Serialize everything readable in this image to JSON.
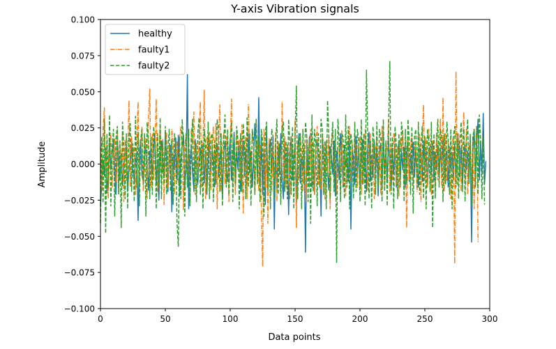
{
  "chart_data": {
    "type": "line",
    "title": "Y-axis Vibration signals",
    "xlabel": "Data points",
    "ylabel": "Amplitude",
    "xlim": [
      0,
      300
    ],
    "ylim": [
      -0.1,
      0.1
    ],
    "xticks": [
      0,
      50,
      100,
      150,
      200,
      250,
      300
    ],
    "yticks": [
      -0.1,
      -0.075,
      -0.05,
      -0.025,
      0.0,
      0.025,
      0.05,
      0.075,
      0.1
    ],
    "xtick_labels": [
      "0",
      "50",
      "100",
      "150",
      "200",
      "250",
      "300"
    ],
    "ytick_labels": [
      "−0.100",
      "−0.075",
      "−0.050",
      "−0.025",
      "0.000",
      "0.025",
      "0.050",
      "0.075",
      "0.100"
    ],
    "grid": false,
    "legend_position": "upper left",
    "series": [
      {
        "name": "healthy",
        "color": "#1f77b4",
        "linestyle": "solid",
        "x_start": 0,
        "x_step": 1,
        "values": [
          -0.029,
          -0.013,
          0.003,
          -0.008,
          0.011,
          -0.02,
          -0.007,
          0.016,
          -0.004,
          0.006,
          0.017,
          -0.006,
          -0.021,
          0.019,
          0.003,
          -0.011,
          0.007,
          -0.015,
          -0.001,
          0.009,
          0.012,
          -0.018,
          -0.003,
          0.004,
          0.015,
          -0.006,
          -0.011,
          0.003,
          0.008,
          -0.039,
          0.006,
          0.017,
          -0.008,
          -0.012,
          0.004,
          0.013,
          -0.002,
          -0.018,
          0.009,
          0.005,
          -0.007,
          0.012,
          0.021,
          -0.014,
          0.003,
          -0.025,
          0.009,
          0.016,
          -0.004,
          -0.008,
          0.022,
          0.004,
          -0.019,
          0.008,
          0.013,
          -0.033,
          0.007,
          -0.004,
          0.018,
          -0.011,
          0.02,
          -0.022,
          0.004,
          0.012,
          0.02,
          -0.016,
          -0.002,
          0.062,
          -0.031,
          0.005,
          0.013,
          -0.006,
          -0.018,
          0.017,
          0.007,
          -0.014,
          0.003,
          0.011,
          -0.005,
          0.014,
          -0.013,
          0.008,
          -0.021,
          0.004,
          0.016,
          -0.007,
          0.011,
          0.002,
          -0.016,
          0.009,
          0.014,
          -0.009,
          0.004,
          0.012,
          -0.023,
          0.008,
          0.015,
          -0.004,
          -0.012,
          0.006,
          0.018,
          -0.011,
          0.003,
          0.022,
          -0.015,
          0.009,
          -0.004,
          0.013,
          -0.019,
          0.006,
          0.016,
          -0.008,
          0.011,
          -0.014,
          0.021,
          -0.006,
          0.009,
          -0.016,
          0.004,
          0.028,
          0.012,
          -0.009,
          0.046,
          -0.013,
          0.018,
          -0.021,
          0.009,
          -0.028,
          0.024,
          -0.015,
          0.003,
          0.017,
          -0.006,
          0.019,
          -0.045,
          0.011,
          -0.018,
          0.014,
          -0.007,
          0.021,
          -0.012,
          -0.024,
          0.016,
          -0.009,
          0.013,
          -0.035,
          0.008,
          0.019,
          -0.011,
          0.004,
          0.015,
          -0.027,
          0.009,
          0.021,
          -0.013,
          0.006,
          -0.004,
          0.011,
          -0.061,
          0.014,
          -0.008,
          0.018,
          0.021,
          -0.016,
          0.007,
          -0.021,
          0.012,
          0.017,
          -0.009,
          0.004,
          -0.036,
          0.018,
          0.008,
          -0.012,
          0.015,
          -0.003,
          -0.018,
          0.012,
          0.006,
          -0.007,
          0.016,
          -0.022,
          0.009,
          0.004,
          -0.011,
          0.021,
          0.007,
          -0.016,
          0.013,
          -0.002,
          0.006,
          -0.012,
          0.018,
          -0.045,
          0.011,
          0.003,
          -0.014,
          0.019,
          -0.007,
          0.012,
          -0.016,
          0.004,
          0.017,
          -0.008,
          0.008,
          -0.019,
          0.012,
          0.022,
          -0.012,
          0.006,
          -0.009,
          0.016,
          -0.004,
          0.011,
          -0.022,
          0.008,
          0.014,
          -0.016,
          0.021,
          -0.006,
          0.009,
          -0.012,
          0.017,
          0.004,
          -0.018,
          0.011,
          -0.007,
          0.014,
          -0.016,
          0.006,
          0.016,
          -0.011,
          0.009,
          -0.004,
          0.012,
          -0.016,
          0.007,
          0.019,
          -0.012,
          0.008,
          -0.006,
          0.015,
          -0.009,
          0.011,
          -0.003,
          -0.016,
          0.012,
          0.007,
          -0.012,
          0.016,
          -0.006,
          0.009,
          -0.015,
          0.004,
          0.012,
          -0.007,
          0.016,
          -0.011,
          0.008,
          -0.004,
          0.013,
          -0.009,
          0.011,
          -0.006,
          0.017,
          -0.012,
          0.006,
          0.009,
          -0.016,
          0.012,
          -0.003,
          0.008,
          -0.011,
          0.014,
          -0.007,
          0.004,
          0.016,
          -0.009,
          0.011,
          -0.014,
          0.006,
          0.013,
          -0.004,
          0.009,
          -0.012,
          0.018,
          -0.054,
          0.007,
          0.024,
          -0.009,
          0.014,
          0.031,
          -0.011,
          0.016,
          -0.006,
          0.035,
          -0.014,
          0.002
        ]
      },
      {
        "name": "faulty1",
        "color": "#ff7f0e",
        "linestyle": "dashdot",
        "x_start": 0,
        "x_step": 1,
        "values": [
          0.012,
          -0.018,
          0.024,
          0.039,
          -0.011,
          0.016,
          -0.024,
          0.009,
          0.021,
          -0.016,
          0.006,
          0.018,
          -0.012,
          0.024,
          -0.019,
          0.014,
          -0.006,
          0.022,
          -0.026,
          0.017,
          -0.011,
          0.009,
          0.044,
          -0.016,
          0.019,
          0.007,
          0.012,
          -0.021,
          0.015,
          0.043,
          -0.014,
          0.011,
          0.026,
          -0.019,
          0.009,
          0.018,
          -0.024,
          0.031,
          0.052,
          -0.016,
          0.021,
          -0.011,
          0.014,
          0.045,
          -0.019,
          0.006,
          0.026,
          -0.012,
          0.017,
          -0.028,
          0.011,
          0.022,
          -0.016,
          0.013,
          -0.009,
          0.024,
          0.014,
          -0.021,
          0.008,
          0.016,
          -0.014,
          0.018,
          0.026,
          0.009,
          -0.032,
          0.013,
          0.021,
          -0.011,
          0.016,
          -0.028,
          0.024,
          0.011,
          0.036,
          -0.021,
          0.014,
          -0.009,
          0.018,
          0.043,
          -0.016,
          0.012,
          0.051,
          -0.024,
          0.019,
          0.009,
          0.022,
          -0.018,
          0.014,
          0.026,
          -0.011,
          0.028,
          -0.031,
          0.016,
          0.041,
          -0.019,
          0.011,
          0.022,
          -0.014,
          0.019,
          0.009,
          -0.026,
          0.016,
          0.045,
          -0.016,
          0.012,
          -0.021,
          0.023,
          0.009,
          0.017,
          -0.012,
          0.027,
          -0.034,
          0.013,
          0.019,
          -0.024,
          0.041,
          0.009,
          -0.016,
          0.022,
          0.014,
          -0.021,
          0.011,
          0.016,
          -0.019,
          0.013,
          -0.031,
          -0.071,
          0.024,
          -0.016,
          0.013,
          -0.041,
          0.018,
          0.009,
          -0.019,
          0.014,
          -0.012,
          0.022,
          -0.026,
          0.016,
          0.009,
          -0.021,
          0.043,
          -0.011,
          0.019,
          -0.016,
          0.014,
          0.009,
          -0.024,
          0.019,
          0.012,
          -0.016,
          0.031,
          -0.044,
          0.014,
          -0.011,
          0.021,
          0.009,
          -0.019,
          0.014,
          -0.026,
          0.018,
          0.011,
          -0.016,
          0.024,
          -0.012,
          0.016,
          -0.021,
          0.013,
          0.026,
          -0.014,
          0.009,
          -0.018,
          0.021,
          0.012,
          -0.024,
          0.016,
          -0.009,
          0.019,
          -0.031,
          0.014,
          0.022,
          -0.012,
          0.017,
          -0.021,
          0.011,
          0.013,
          -0.018,
          0.023,
          -0.014,
          0.009,
          -0.022,
          0.016,
          0.012,
          0.026,
          -0.011,
          0.014,
          -0.019,
          0.021,
          0.009,
          -0.016,
          0.013,
          0.019,
          -0.021,
          0.011,
          -0.014,
          0.024,
          0.008,
          -0.018,
          0.013,
          0.021,
          -0.011,
          0.016,
          -0.024,
          0.009,
          0.019,
          -0.014,
          0.012,
          -0.021,
          0.026,
          0.011,
          -0.016,
          0.014,
          0.009,
          0.031,
          -0.019,
          0.013,
          -0.011,
          0.021,
          0.016,
          -0.014,
          0.012,
          -0.022,
          0.018,
          0.009,
          0.024,
          -0.016,
          0.014,
          -0.044,
          0.019,
          -0.011,
          0.013,
          0.021,
          -0.014,
          0.009,
          0.016,
          -0.019,
          0.012,
          0.021,
          -0.026,
          0.014,
          0.041,
          -0.011,
          0.018,
          -0.016,
          0.024,
          0.009,
          -0.021,
          0.016,
          0.012,
          -0.018,
          0.022,
          -0.011,
          0.014,
          0.031,
          -0.016,
          0.046,
          -0.019,
          0.021,
          -0.012,
          0.016,
          0.009,
          -0.024,
          0.014,
          0.019,
          -0.069,
          0.064,
          -0.014,
          0.021,
          0.011,
          -0.019,
          0.016,
          0.036,
          -0.012,
          0.024,
          -0.021,
          0.014,
          0.009,
          -0.016,
          0.019,
          -0.031,
          0.013,
          0.026,
          -0.054
        ]
      },
      {
        "name": "faulty2",
        "color": "#2ca02c",
        "linestyle": "dashed",
        "x_start": 0,
        "x_step": 1,
        "values": [
          -0.041,
          0.019,
          -0.027,
          0.031,
          -0.048,
          0.021,
          -0.016,
          0.034,
          -0.029,
          0.011,
          0.024,
          -0.036,
          0.018,
          0.026,
          -0.021,
          0.016,
          -0.044,
          0.029,
          0.012,
          -0.024,
          0.021,
          -0.031,
          0.019,
          0.028,
          -0.019,
          0.014,
          -0.026,
          0.033,
          -0.016,
          0.022,
          -0.029,
          0.017,
          0.024,
          -0.014,
          0.021,
          -0.036,
          0.029,
          0.016,
          -0.024,
          0.019,
          -0.021,
          0.026,
          0.014,
          -0.031,
          0.021,
          -0.016,
          0.032,
          -0.024,
          0.016,
          -0.014,
          0.026,
          -0.021,
          0.011,
          0.024,
          -0.019,
          0.016,
          -0.028,
          0.021,
          0.013,
          -0.041,
          -0.057,
          0.019,
          -0.024,
          0.031,
          0.014,
          -0.036,
          0.021,
          -0.016,
          0.024,
          -0.029,
          0.017,
          0.031,
          -0.019,
          0.014,
          -0.026,
          0.021,
          0.032,
          -0.021,
          0.016,
          -0.031,
          0.024,
          0.014,
          -0.019,
          0.029,
          -0.024,
          0.018,
          0.021,
          -0.026,
          0.016,
          -0.014,
          0.031,
          0.024,
          -0.019,
          0.021,
          -0.029,
          0.016,
          0.034,
          -0.016,
          0.024,
          -0.021,
          0.014,
          0.029,
          -0.026,
          0.019,
          -0.014,
          0.026,
          0.016,
          -0.031,
          0.021,
          -0.019,
          0.028,
          0.014,
          -0.024,
          0.032,
          -0.016,
          0.021,
          -0.029,
          0.024,
          0.016,
          -0.021,
          0.031,
          -0.014,
          0.019,
          -0.026,
          0.024,
          0.016,
          -0.036,
          0.021,
          0.029,
          -0.019,
          0.014,
          -0.031,
          0.024,
          0.019,
          -0.026,
          0.016,
          0.031,
          -0.021,
          0.014,
          -0.028,
          0.024,
          0.029,
          -0.019,
          0.016,
          -0.024,
          0.031,
          0.014,
          -0.021,
          0.026,
          -0.031,
          0.019,
          0.054,
          -0.024,
          0.016,
          0.021,
          -0.031,
          0.024,
          -0.014,
          0.029,
          0.019,
          -0.026,
          0.016,
          -0.041,
          0.034,
          -0.019,
          0.024,
          0.014,
          -0.029,
          0.021,
          -0.016,
          0.031,
          0.024,
          -0.021,
          0.016,
          -0.031,
          0.044,
          0.021,
          -0.024,
          0.014,
          0.029,
          -0.019,
          0.024,
          -0.068,
          0.031,
          0.016,
          -0.026,
          0.021,
          0.019,
          -0.024,
          0.034,
          -0.016,
          0.026,
          -0.031,
          0.021,
          0.014,
          -0.024,
          0.029,
          -0.019,
          0.024,
          0.016,
          -0.026,
          0.031,
          -0.014,
          0.021,
          -0.029,
          0.065,
          0.019,
          -0.024,
          0.016,
          -0.031,
          0.026,
          0.014,
          -0.021,
          0.029,
          -0.016,
          0.024,
          0.019,
          -0.026,
          0.031,
          -0.019,
          0.016,
          -0.029,
          0.024,
          0.071,
          -0.021,
          0.019,
          -0.031,
          0.026,
          0.014,
          -0.024,
          0.021,
          -0.016,
          0.029,
          0.019,
          -0.026,
          0.024,
          -0.014,
          0.031,
          0.016,
          -0.021,
          0.026,
          -0.034,
          0.019,
          0.024,
          -0.016,
          0.029,
          -0.021,
          0.014,
          0.026,
          -0.024,
          0.019,
          -0.031,
          0.024,
          0.016,
          -0.019,
          0.029,
          -0.044,
          0.021,
          -0.024,
          0.014,
          0.031,
          -0.016,
          0.024,
          0.019,
          -0.026,
          0.021,
          -0.014,
          0.029,
          0.016,
          -0.021,
          0.024,
          -0.031,
          0.019,
          0.026,
          -0.016,
          0.021,
          -0.024,
          0.014,
          0.029,
          -0.019,
          0.024,
          -0.026,
          0.016,
          0.031,
          -0.014,
          0.021,
          -0.029,
          0.019,
          0.024,
          -0.016,
          0.026,
          -0.021,
          0.034,
          0.016,
          -0.024,
          0.019,
          -0.028
        ]
      }
    ]
  }
}
